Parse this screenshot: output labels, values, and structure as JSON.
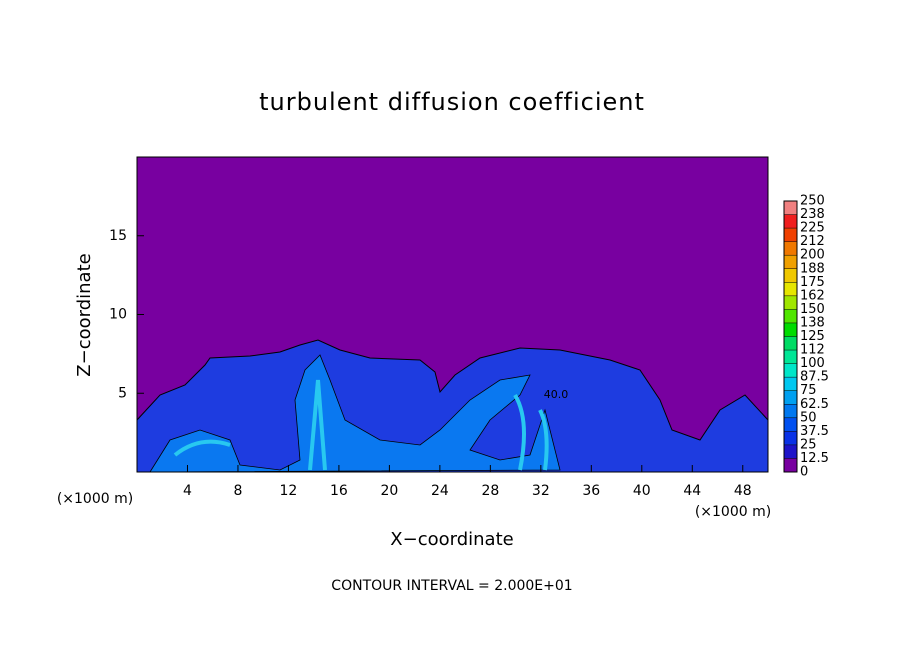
{
  "chart_data": {
    "type": "contour",
    "title": "turbulent diffusion coefficient",
    "xlabel": "X−coordinate",
    "ylabel": "Z−coordinate",
    "x_unit": "(×1000 m)",
    "x_unit_right": "(×1000 m)",
    "footnote": "CONTOUR INTERVAL = 2.000E+01",
    "contour_label": "40.0",
    "xlim": [
      0,
      50
    ],
    "xticks": [
      4,
      8,
      12,
      16,
      20,
      24,
      28,
      32,
      36,
      40,
      44,
      48
    ],
    "ylim": [
      0,
      20
    ],
    "yticks": [
      5,
      10,
      15
    ],
    "colorbar": {
      "ticks": [
        0,
        12.5,
        25,
        37.5,
        50,
        62.5,
        75,
        87.5,
        100,
        {
          "value": 112.5,
          "label": "112"
        },
        125,
        {
          "value": 137.5,
          "label": "138"
        },
        150,
        {
          "value": 162.5,
          "label": "162"
        },
        175,
        {
          "value": 187.5,
          "label": "188"
        },
        200,
        {
          "value": 212.5,
          "label": "212"
        },
        225,
        {
          "value": 237.5,
          "label": "238"
        },
        250
      ],
      "colors": [
        "#7800a0",
        "#1e14c8",
        "#0a32e6",
        "#0050f0",
        "#0078f0",
        "#00a0f0",
        "#00c8f0",
        "#00e6c8",
        "#00e696",
        "#00dc64",
        "#00dc00",
        "#50e600",
        "#a0e600",
        "#e6e600",
        "#f0c800",
        "#f0a000",
        "#f07800",
        "#f04000",
        "#f01e1e",
        "#f08080"
      ]
    }
  }
}
